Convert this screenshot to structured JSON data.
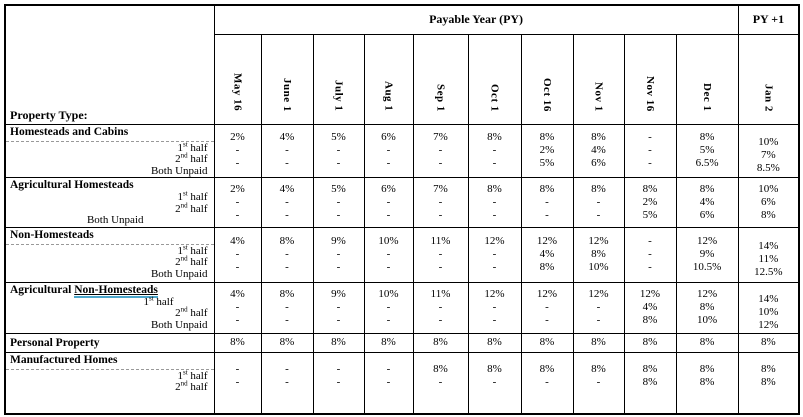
{
  "table": {
    "property_type_label": "Property Type:",
    "payable_year_label": "Payable Year (PY)",
    "py_plus1_label": "PY +1",
    "months": [
      "May 16",
      "June 1",
      "July 1",
      "Aug 1",
      "Sep 1",
      "Oct 1",
      "Oct 16",
      "Nov 1",
      "Nov 16",
      "Dec 1",
      "Jan 2"
    ],
    "sections": [
      {
        "title": {
          "text": "Homesteads and Cabins",
          "underlined": ""
        },
        "dashed_separator": true,
        "jan2_shift": true,
        "vals_high": false,
        "sub_rows": [
          {
            "base": "1",
            "sup": "st",
            "rest": " half",
            "indent": 0
          },
          {
            "base": "2",
            "sup": "nd",
            "rest": " half",
            "indent": 0
          },
          {
            "base": "Both Unpaid",
            "sup": "",
            "rest": "",
            "indent": 0
          }
        ],
        "values": [
          [
            "2%",
            "-",
            "-"
          ],
          [
            "4%",
            "-",
            "-"
          ],
          [
            "5%",
            "-",
            "-"
          ],
          [
            "6%",
            "-",
            "-"
          ],
          [
            "7%",
            "-",
            "-"
          ],
          [
            "8%",
            "-",
            "-"
          ],
          [
            "8%",
            "2%",
            "5%"
          ],
          [
            "8%",
            "4%",
            "6%"
          ],
          [
            "-",
            "-",
            "-"
          ],
          [
            "8%",
            "5%",
            "6.5%"
          ],
          [
            "10%",
            "7%",
            "8.5%"
          ]
        ]
      },
      {
        "title": {
          "text": "Agricultural Homesteads",
          "underlined": ""
        },
        "dashed_separator": false,
        "jan2_shift": false,
        "vals_high": false,
        "sub_rows": [
          {
            "base": "1",
            "sup": "st",
            "rest": " half",
            "indent": 0
          },
          {
            "base": "2",
            "sup": "nd",
            "rest": " half",
            "indent": 0
          },
          {
            "base": "Both Unpaid",
            "sup": "",
            "rest": "",
            "indent": 64
          }
        ],
        "values": [
          [
            "2%",
            "-",
            "-"
          ],
          [
            "4%",
            "-",
            "-"
          ],
          [
            "5%",
            "-",
            "-"
          ],
          [
            "6%",
            "-",
            "-"
          ],
          [
            "7%",
            "-",
            "-"
          ],
          [
            "8%",
            "-",
            "-"
          ],
          [
            "8%",
            "-",
            "-"
          ],
          [
            "8%",
            "-",
            "-"
          ],
          [
            "8%",
            "2%",
            "5%"
          ],
          [
            "8%",
            "4%",
            "6%"
          ],
          [
            "10%",
            "6%",
            "8%"
          ]
        ]
      },
      {
        "title": {
          "text": "Non-Homesteads",
          "underlined": ""
        },
        "dashed_separator": true,
        "jan2_shift": true,
        "vals_high": false,
        "sub_rows": [
          {
            "base": "1",
            "sup": "st",
            "rest": " half",
            "indent": 0
          },
          {
            "base": "2",
            "sup": "nd",
            "rest": " half",
            "indent": 0
          },
          {
            "base": "Both Unpaid",
            "sup": "",
            "rest": "",
            "indent": 0
          }
        ],
        "values": [
          [
            "4%",
            "-",
            "-"
          ],
          [
            "8%",
            "-",
            "-"
          ],
          [
            "9%",
            "-",
            "-"
          ],
          [
            "10%",
            "-",
            "-"
          ],
          [
            "11%",
            "-",
            "-"
          ],
          [
            "12%",
            "-",
            "-"
          ],
          [
            "12%",
            "4%",
            "8%"
          ],
          [
            "12%",
            "8%",
            "10%"
          ],
          [
            "-",
            "-",
            "-"
          ],
          [
            "12%",
            "9%",
            "10.5%"
          ],
          [
            "14%",
            "11%",
            "12.5%"
          ]
        ]
      },
      {
        "title": {
          "text": "Agricultural ",
          "underlined": "Non-Homesteads"
        },
        "dashed_separator": false,
        "jan2_shift": true,
        "vals_high": false,
        "sub_rows": [
          {
            "base": "1",
            "sup": "st",
            "rest": " half",
            "indent": 34
          },
          {
            "base": "2",
            "sup": "nd",
            "rest": " half",
            "indent": 0
          },
          {
            "base": "Both Unpaid",
            "sup": "",
            "rest": "",
            "indent": 0
          }
        ],
        "values": [
          [
            "4%",
            "-",
            "-"
          ],
          [
            "8%",
            "-",
            "-"
          ],
          [
            "9%",
            "-",
            "-"
          ],
          [
            "10%",
            "-",
            "-"
          ],
          [
            "11%",
            "-",
            "-"
          ],
          [
            "12%",
            "-",
            "-"
          ],
          [
            "12%",
            "-",
            "-"
          ],
          [
            "12%",
            "-",
            "-"
          ],
          [
            "12%",
            "4%",
            "8%"
          ],
          [
            "12%",
            "8%",
            "10%"
          ],
          [
            "14%",
            "10%",
            "12%"
          ]
        ]
      },
      {
        "title": {
          "text": "Personal Property",
          "underlined": ""
        },
        "dashed_separator": false,
        "jan2_shift": false,
        "vals_high": false,
        "sub_rows": [],
        "values": [
          [
            "8%"
          ],
          [
            "8%"
          ],
          [
            "8%"
          ],
          [
            "8%"
          ],
          [
            "8%"
          ],
          [
            "8%"
          ],
          [
            "8%"
          ],
          [
            "8%"
          ],
          [
            "8%"
          ],
          [
            "8%"
          ],
          [
            "8%"
          ]
        ]
      },
      {
        "title": {
          "text": "Manufactured Homes",
          "underlined": ""
        },
        "dashed_separator": true,
        "jan2_shift": false,
        "vals_high": true,
        "sub_rows": [
          {
            "base": "1",
            "sup": "st",
            "rest": " half",
            "indent": 0
          },
          {
            "base": "2",
            "sup": "nd",
            "rest": " half",
            "indent": 0
          }
        ],
        "values": [
          [
            "-",
            "-"
          ],
          [
            "-",
            "-"
          ],
          [
            "-",
            "-"
          ],
          [
            "-",
            "-"
          ],
          [
            "8%",
            "-"
          ],
          [
            "8%",
            "-"
          ],
          [
            "8%",
            "-"
          ],
          [
            "8%",
            "-"
          ],
          [
            "8%",
            "8%"
          ],
          [
            "8%",
            "8%"
          ],
          [
            "8%",
            "8%"
          ]
        ]
      }
    ]
  }
}
